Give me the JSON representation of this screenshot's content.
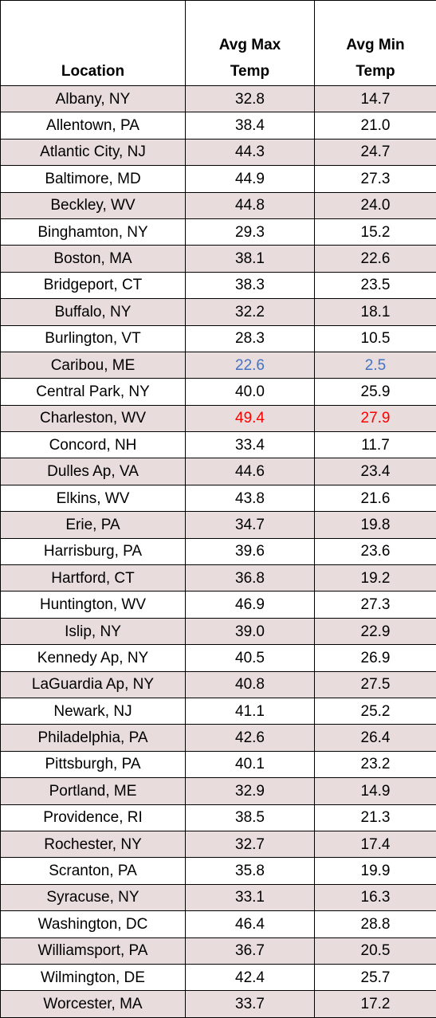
{
  "table": {
    "headers": {
      "location": "Location",
      "max_line1": "Avg Max",
      "max_line2": "Temp",
      "min_line1": "Avg Min",
      "min_line2": "Temp"
    },
    "colors": {
      "shaded_row": "#e8dcdc",
      "coldest": "#4472c4",
      "warmest": "#ff0000"
    },
    "rows": [
      {
        "location": "Albany, NY",
        "max": "32.8",
        "min": "14.7"
      },
      {
        "location": "Allentown, PA",
        "max": "38.4",
        "min": "21.0"
      },
      {
        "location": "Atlantic City, NJ",
        "max": "44.3",
        "min": "24.7"
      },
      {
        "location": "Baltimore, MD",
        "max": "44.9",
        "min": "27.3"
      },
      {
        "location": "Beckley, WV",
        "max": "44.8",
        "min": "24.0"
      },
      {
        "location": "Binghamton, NY",
        "max": "29.3",
        "min": "15.2"
      },
      {
        "location": "Boston, MA",
        "max": "38.1",
        "min": "22.6"
      },
      {
        "location": "Bridgeport, CT",
        "max": "38.3",
        "min": "23.5"
      },
      {
        "location": "Buffalo, NY",
        "max": "32.2",
        "min": "18.1"
      },
      {
        "location": "Burlington, VT",
        "max": "28.3",
        "min": "10.5"
      },
      {
        "location": "Caribou, ME",
        "max": "22.6",
        "min": "2.5",
        "highlight": "coldest"
      },
      {
        "location": "Central Park, NY",
        "max": "40.0",
        "min": "25.9"
      },
      {
        "location": "Charleston, WV",
        "max": "49.4",
        "min": "27.9",
        "highlight": "warmest"
      },
      {
        "location": "Concord, NH",
        "max": "33.4",
        "min": "11.7"
      },
      {
        "location": "Dulles Ap, VA",
        "max": "44.6",
        "min": "23.4"
      },
      {
        "location": "Elkins, WV",
        "max": "43.8",
        "min": "21.6"
      },
      {
        "location": "Erie, PA",
        "max": "34.7",
        "min": "19.8"
      },
      {
        "location": "Harrisburg, PA",
        "max": "39.6",
        "min": "23.6"
      },
      {
        "location": "Hartford, CT",
        "max": "36.8",
        "min": "19.2"
      },
      {
        "location": "Huntington, WV",
        "max": "46.9",
        "min": "27.3"
      },
      {
        "location": "Islip, NY",
        "max": "39.0",
        "min": "22.9"
      },
      {
        "location": "Kennedy Ap, NY",
        "max": "40.5",
        "min": "26.9"
      },
      {
        "location": "LaGuardia Ap, NY",
        "max": "40.8",
        "min": "27.5"
      },
      {
        "location": "Newark, NJ",
        "max": "41.1",
        "min": "25.2"
      },
      {
        "location": "Philadelphia, PA",
        "max": "42.6",
        "min": "26.4"
      },
      {
        "location": "Pittsburgh, PA",
        "max": "40.1",
        "min": "23.2"
      },
      {
        "location": "Portland, ME",
        "max": "32.9",
        "min": "14.9"
      },
      {
        "location": "Providence, RI",
        "max": "38.5",
        "min": "21.3"
      },
      {
        "location": "Rochester, NY",
        "max": "32.7",
        "min": "17.4"
      },
      {
        "location": "Scranton, PA",
        "max": "35.8",
        "min": "19.9"
      },
      {
        "location": "Syracuse, NY",
        "max": "33.1",
        "min": "16.3"
      },
      {
        "location": "Washington, DC",
        "max": "46.4",
        "min": "28.8"
      },
      {
        "location": "Williamsport, PA",
        "max": "36.7",
        "min": "20.5"
      },
      {
        "location": "Wilmington, DE",
        "max": "42.4",
        "min": "25.7"
      },
      {
        "location": "Worcester, MA",
        "max": "33.7",
        "min": "17.2"
      }
    ]
  }
}
